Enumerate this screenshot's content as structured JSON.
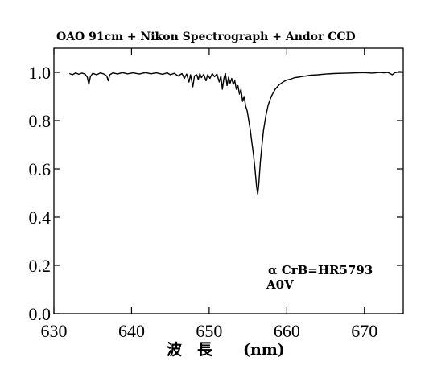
{
  "chart_data": {
    "type": "line",
    "title": "OAO 91cm + Nikon Spectrograph + Andor CCD",
    "xlabel": "波　長　　(nm)",
    "ylabel": "",
    "xlim": [
      630,
      675
    ],
    "ylim": [
      0.0,
      1.1
    ],
    "x_ticks": [
      {
        "value": 630,
        "label": "630"
      },
      {
        "value": 640,
        "label": "640"
      },
      {
        "value": 650,
        "label": "650"
      },
      {
        "value": 660,
        "label": "660"
      },
      {
        "value": 670,
        "label": "670"
      }
    ],
    "y_ticks": [
      {
        "value": 0.0,
        "label": "0.0"
      },
      {
        "value": 0.2,
        "label": "0.2"
      },
      {
        "value": 0.4,
        "label": "0.4"
      },
      {
        "value": 0.6,
        "label": "0.6"
      },
      {
        "value": 0.8,
        "label": "0.8"
      },
      {
        "value": 1.0,
        "label": "1.0"
      }
    ],
    "annotations": [
      "α CrB=HR5793",
      "A0V"
    ],
    "grid": false,
    "legend": "none",
    "series": [
      {
        "color": "#000000",
        "points": [
          [
            632.0,
            0.995
          ],
          [
            632.4,
            0.99
          ],
          [
            632.8,
            0.998
          ],
          [
            633.2,
            0.992
          ],
          [
            633.6,
            0.997
          ],
          [
            634.0,
            0.993
          ],
          [
            634.3,
            0.98
          ],
          [
            634.5,
            0.95
          ],
          [
            634.7,
            0.982
          ],
          [
            635.0,
            0.996
          ],
          [
            635.5,
            0.99
          ],
          [
            636.0,
            0.998
          ],
          [
            636.5,
            0.992
          ],
          [
            636.8,
            0.985
          ],
          [
            637.0,
            0.965
          ],
          [
            637.2,
            0.99
          ],
          [
            637.6,
            0.998
          ],
          [
            638.2,
            0.993
          ],
          [
            638.8,
            0.999
          ],
          [
            639.5,
            0.994
          ],
          [
            640.2,
            0.998
          ],
          [
            641.0,
            0.993
          ],
          [
            641.8,
            0.999
          ],
          [
            642.5,
            0.994
          ],
          [
            643.2,
            0.998
          ],
          [
            644.0,
            0.992
          ],
          [
            644.6,
            0.998
          ],
          [
            645.0,
            0.99
          ],
          [
            645.5,
            0.996
          ],
          [
            646.0,
            0.985
          ],
          [
            646.5,
            0.995
          ],
          [
            646.8,
            0.975
          ],
          [
            647.1,
            0.993
          ],
          [
            647.4,
            0.96
          ],
          [
            647.6,
            0.99
          ],
          [
            647.9,
            0.94
          ],
          [
            648.1,
            0.985
          ],
          [
            648.4,
            0.99
          ],
          [
            648.6,
            0.97
          ],
          [
            648.8,
            0.995
          ],
          [
            649.0,
            0.978
          ],
          [
            649.3,
            0.992
          ],
          [
            649.6,
            0.965
          ],
          [
            649.8,
            0.99
          ],
          [
            650.1,
            0.975
          ],
          [
            650.4,
            0.995
          ],
          [
            650.7,
            0.982
          ],
          [
            651.0,
            0.993
          ],
          [
            651.3,
            0.96
          ],
          [
            651.5,
            0.985
          ],
          [
            651.7,
            0.93
          ],
          [
            651.9,
            0.975
          ],
          [
            652.1,
            0.995
          ],
          [
            652.3,
            0.945
          ],
          [
            652.5,
            0.98
          ],
          [
            652.7,
            0.955
          ],
          [
            652.9,
            0.975
          ],
          [
            653.1,
            0.95
          ],
          [
            653.3,
            0.965
          ],
          [
            653.5,
            0.93
          ],
          [
            653.7,
            0.945
          ],
          [
            653.9,
            0.91
          ],
          [
            654.1,
            0.93
          ],
          [
            654.3,
            0.88
          ],
          [
            654.5,
            0.9
          ],
          [
            654.7,
            0.86
          ],
          [
            654.9,
            0.84
          ],
          [
            655.1,
            0.8
          ],
          [
            655.3,
            0.76
          ],
          [
            655.5,
            0.71
          ],
          [
            655.7,
            0.66
          ],
          [
            655.9,
            0.6
          ],
          [
            656.1,
            0.53
          ],
          [
            656.25,
            0.495
          ],
          [
            656.4,
            0.54
          ],
          [
            656.6,
            0.63
          ],
          [
            656.8,
            0.7
          ],
          [
            657.0,
            0.76
          ],
          [
            657.3,
            0.82
          ],
          [
            657.6,
            0.865
          ],
          [
            658.0,
            0.9
          ],
          [
            658.5,
            0.93
          ],
          [
            659.0,
            0.948
          ],
          [
            659.5,
            0.96
          ],
          [
            660.0,
            0.968
          ],
          [
            660.5,
            0.972
          ],
          [
            661.0,
            0.978
          ],
          [
            661.5,
            0.98
          ],
          [
            662.0,
            0.983
          ],
          [
            662.5,
            0.985
          ],
          [
            663.0,
            0.988
          ],
          [
            664.0,
            0.99
          ],
          [
            665.0,
            0.993
          ],
          [
            666.0,
            0.995
          ],
          [
            667.0,
            0.996
          ],
          [
            668.0,
            0.997
          ],
          [
            669.0,
            0.998
          ],
          [
            670.0,
            0.999
          ],
          [
            671.0,
            0.997
          ],
          [
            672.0,
            1.0
          ],
          [
            672.5,
            0.998
          ],
          [
            673.0,
            1.0
          ],
          [
            673.6,
            0.99
          ],
          [
            673.9,
            0.998
          ],
          [
            674.5,
            1.003
          ],
          [
            675.0,
            1.002
          ]
        ]
      }
    ]
  }
}
